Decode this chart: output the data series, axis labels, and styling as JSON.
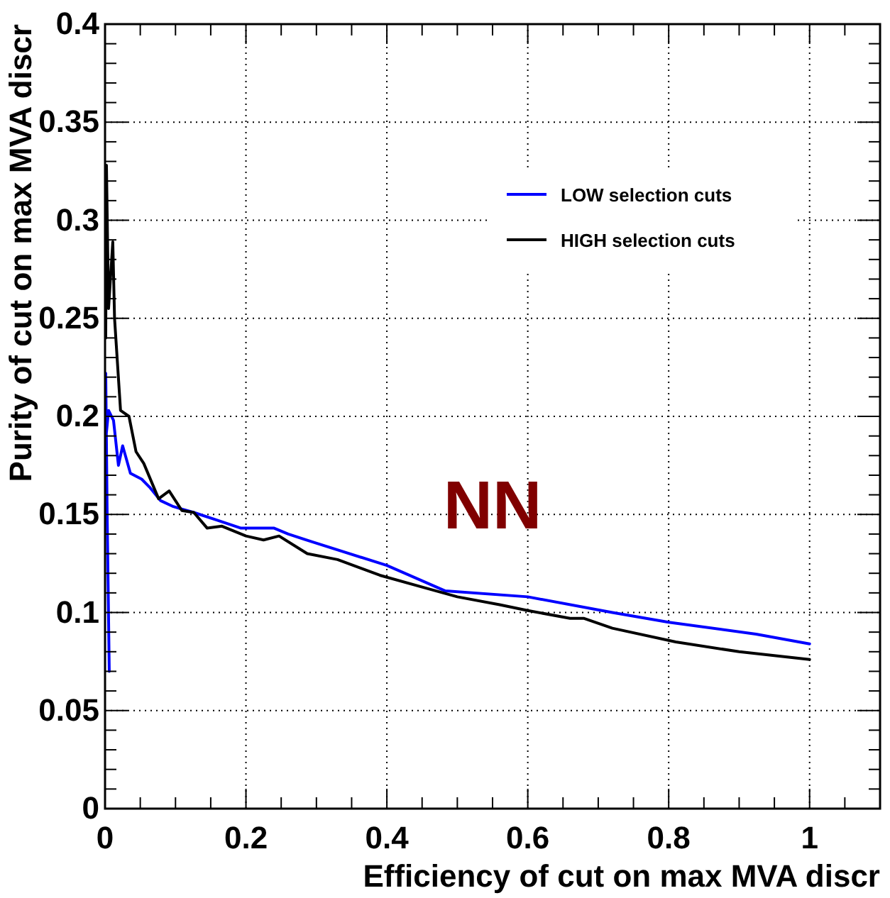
{
  "chart_data": {
    "type": "line",
    "xlabel": "Efficiency of cut on max MVA discr",
    "ylabel": "Purity of cut on max MVA discr",
    "annotations": [
      "NN"
    ],
    "xlim": [
      0,
      1.1
    ],
    "ylim": [
      0,
      0.4
    ],
    "xticks": [
      0,
      {
        "value": 0.05,
        "label": null
      },
      {
        "value": 0.1,
        "label": null
      },
      {
        "value": 0.15,
        "label": null
      },
      0.2,
      {
        "value": 0.25,
        "label": null
      },
      {
        "value": 0.3,
        "label": null
      },
      {
        "value": 0.35,
        "label": null
      },
      0.4,
      {
        "value": 0.45,
        "label": null
      },
      {
        "value": 0.5,
        "label": null
      },
      {
        "value": 0.55,
        "label": null
      },
      0.6,
      {
        "value": 0.65,
        "label": null
      },
      {
        "value": 0.7,
        "label": null
      },
      {
        "value": 0.75,
        "label": null
      },
      0.8,
      {
        "value": 0.85,
        "label": null
      },
      {
        "value": 0.9,
        "label": null
      },
      {
        "value": 0.95,
        "label": null
      },
      1,
      {
        "value": 1.05,
        "label": null
      }
    ],
    "yticks": [
      0,
      {
        "value": 0.01,
        "label": null
      },
      {
        "value": 0.02,
        "label": null
      },
      {
        "value": 0.03,
        "label": null
      },
      {
        "value": 0.04,
        "label": null
      },
      0.05,
      {
        "value": 0.06,
        "label": null
      },
      {
        "value": 0.07,
        "label": null
      },
      {
        "value": 0.08,
        "label": null
      },
      {
        "value": 0.09,
        "label": null
      },
      0.1,
      {
        "value": 0.11,
        "label": null
      },
      {
        "value": 0.12,
        "label": null
      },
      {
        "value": 0.13,
        "label": null
      },
      {
        "value": 0.14,
        "label": null
      },
      0.15,
      {
        "value": 0.16,
        "label": null
      },
      {
        "value": 0.17,
        "label": null
      },
      {
        "value": 0.18,
        "label": null
      },
      {
        "value": 0.19,
        "label": null
      },
      0.2,
      {
        "value": 0.21,
        "label": null
      },
      {
        "value": 0.22,
        "label": null
      },
      {
        "value": 0.23,
        "label": null
      },
      {
        "value": 0.24,
        "label": null
      },
      0.25,
      {
        "value": 0.26,
        "label": null
      },
      {
        "value": 0.27,
        "label": null
      },
      {
        "value": 0.28,
        "label": null
      },
      {
        "value": 0.29,
        "label": null
      },
      0.3,
      {
        "value": 0.31,
        "label": null
      },
      {
        "value": 0.32,
        "label": null
      },
      {
        "value": 0.33,
        "label": null
      },
      {
        "value": 0.34,
        "label": null
      },
      0.35,
      {
        "value": 0.36,
        "label": null
      },
      {
        "value": 0.37,
        "label": null
      },
      {
        "value": 0.38,
        "label": null
      },
      {
        "value": 0.39,
        "label": null
      },
      0.4
    ],
    "grid": true,
    "legend": "top right",
    "marker": "none",
    "line_style": "solid",
    "series": [
      {
        "name": "LOW selection cuts",
        "color": "#0000ff",
        "x": [
          0.006,
          0.003,
          0.001,
          0.0015,
          0.005,
          0.012,
          0.019,
          0.025,
          0.036,
          0.052,
          0.063,
          0.079,
          0.097,
          0.126,
          0.16,
          0.193,
          0.24,
          0.26,
          0.294,
          0.4,
          0.483,
          0.6,
          0.72,
          0.8,
          0.924,
          1.0
        ],
        "values": [
          0.07,
          0.15,
          0.222,
          0.19,
          0.203,
          0.198,
          0.175,
          0.185,
          0.171,
          0.168,
          0.164,
          0.157,
          0.154,
          0.151,
          0.147,
          0.143,
          0.143,
          0.14,
          0.136,
          0.124,
          0.111,
          0.108,
          0.1,
          0.095,
          0.089,
          0.084
        ]
      },
      {
        "name": "HIGH selection cuts",
        "color": "#000000",
        "x": [
          0.001,
          0.002,
          0.005,
          0.011,
          0.0135,
          0.022,
          0.034,
          0.044,
          0.055,
          0.076,
          0.091,
          0.109,
          0.126,
          0.145,
          0.166,
          0.2,
          0.225,
          0.247,
          0.287,
          0.33,
          0.39,
          0.46,
          0.5,
          0.56,
          0.6,
          0.66,
          0.68,
          0.72,
          0.81,
          0.9,
          1.0
        ],
        "values": [
          0.24,
          0.328,
          0.255,
          0.289,
          0.25,
          0.203,
          0.2,
          0.182,
          0.176,
          0.158,
          0.162,
          0.152,
          0.151,
          0.143,
          0.144,
          0.139,
          0.137,
          0.139,
          0.13,
          0.127,
          0.119,
          0.112,
          0.108,
          0.104,
          0.101,
          0.097,
          0.097,
          0.092,
          0.085,
          0.08,
          0.076
        ]
      }
    ]
  }
}
